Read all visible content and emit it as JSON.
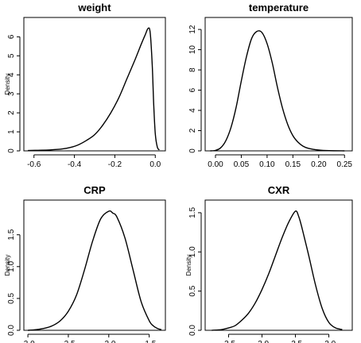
{
  "chart_data": [
    {
      "type": "line",
      "title": "weight",
      "ylabel": "Density",
      "xlim": [
        -0.65,
        0.05
      ],
      "ylim": [
        0,
        6.6
      ],
      "xticks": [
        -0.6,
        -0.4,
        -0.2,
        0.0
      ],
      "xtick_labels": [
        "-0.6",
        "-0.4",
        "-0.2",
        "0.0"
      ],
      "yticks": [
        0,
        1,
        2,
        3,
        4,
        5,
        6
      ],
      "ytick_labels": [
        "0",
        "1",
        "2",
        "3",
        "4",
        "5",
        "6"
      ],
      "x": [
        -0.63,
        -0.58,
        -0.52,
        -0.46,
        -0.42,
        -0.38,
        -0.34,
        -0.3,
        -0.26,
        -0.22,
        -0.18,
        -0.14,
        -0.1,
        -0.07,
        -0.05,
        -0.035,
        -0.025,
        -0.015,
        -0.008,
        0.0,
        0.01,
        0.02
      ],
      "y": [
        0.02,
        0.03,
        0.05,
        0.1,
        0.18,
        0.32,
        0.55,
        0.85,
        1.35,
        2.0,
        2.8,
        3.8,
        4.8,
        5.6,
        6.1,
        6.45,
        6.2,
        4.5,
        2.5,
        0.9,
        0.2,
        0.05
      ]
    },
    {
      "type": "line",
      "title": "temperature",
      "ylabel": "",
      "xlim": [
        -0.02,
        0.265
      ],
      "ylim": [
        0,
        12.4
      ],
      "xticks": [
        0.0,
        0.05,
        0.1,
        0.15,
        0.2,
        0.25
      ],
      "xtick_labels": [
        "0.00",
        "0.05",
        "0.10",
        "0.15",
        "0.20",
        "0.25"
      ],
      "yticks": [
        0,
        2,
        4,
        6,
        8,
        10,
        12
      ],
      "ytick_labels": [
        "0",
        "2",
        "4",
        "6",
        "8",
        "10",
        "12"
      ],
      "x": [
        -0.01,
        0.0,
        0.01,
        0.02,
        0.03,
        0.04,
        0.05,
        0.06,
        0.07,
        0.08,
        0.09,
        0.1,
        0.11,
        0.12,
        0.13,
        0.14,
        0.15,
        0.16,
        0.17,
        0.18,
        0.2,
        0.22,
        0.25
      ],
      "y": [
        0.0,
        0.05,
        0.3,
        1.0,
        2.3,
        4.3,
        6.9,
        9.3,
        11.1,
        11.8,
        11.7,
        10.6,
        8.7,
        6.3,
        4.2,
        2.6,
        1.5,
        0.85,
        0.45,
        0.25,
        0.08,
        0.02,
        0.0
      ]
    },
    {
      "type": "line",
      "title": "CRP",
      "ylabel": "Density",
      "xlim": [
        -3.05,
        -1.3
      ],
      "ylim": [
        0,
        1.92
      ],
      "xticks": [
        -3.0,
        -2.5,
        -2.0,
        -1.5
      ],
      "xtick_labels": [
        "-3.0",
        "-2.5",
        "-2.0",
        "-1.5"
      ],
      "yticks": [
        0.0,
        0.5,
        1.0,
        1.5
      ],
      "ytick_labels": [
        "0.0",
        "0.5",
        "1.0",
        "1.5"
      ],
      "x": [
        -3.0,
        -2.9,
        -2.8,
        -2.7,
        -2.6,
        -2.5,
        -2.4,
        -2.3,
        -2.2,
        -2.1,
        -2.0,
        -1.95,
        -1.9,
        -1.8,
        -1.7,
        -1.6,
        -1.5,
        -1.45,
        -1.4,
        -1.35
      ],
      "y": [
        0.0,
        0.01,
        0.03,
        0.07,
        0.15,
        0.3,
        0.55,
        0.95,
        1.4,
        1.75,
        1.87,
        1.84,
        1.78,
        1.45,
        0.95,
        0.45,
        0.15,
        0.07,
        0.03,
        0.01
      ]
    },
    {
      "type": "line",
      "title": "CXR",
      "ylabel": "Density",
      "xlim": [
        -3.85,
        -1.65
      ],
      "ylim": [
        0,
        1.56
      ],
      "xticks": [
        -3.5,
        -3.0,
        -2.5,
        -2.0
      ],
      "xtick_labels": [
        "-3.5",
        "-3.0",
        "-2.5",
        "-2.0"
      ],
      "yticks": [
        0.0,
        0.5,
        1.0,
        1.5
      ],
      "ytick_labels": [
        "0.0",
        "0.5",
        "1.0",
        "1.5"
      ],
      "x": [
        -3.75,
        -3.6,
        -3.5,
        -3.4,
        -3.3,
        -3.2,
        -3.1,
        -3.0,
        -2.9,
        -2.8,
        -2.7,
        -2.6,
        -2.5,
        -2.45,
        -2.4,
        -2.3,
        -2.2,
        -2.1,
        -2.0,
        -1.9,
        -1.8
      ],
      "y": [
        0.0,
        0.01,
        0.03,
        0.06,
        0.13,
        0.22,
        0.35,
        0.52,
        0.72,
        0.95,
        1.18,
        1.38,
        1.52,
        1.45,
        1.3,
        0.95,
        0.58,
        0.28,
        0.1,
        0.03,
        0.01
      ]
    }
  ]
}
